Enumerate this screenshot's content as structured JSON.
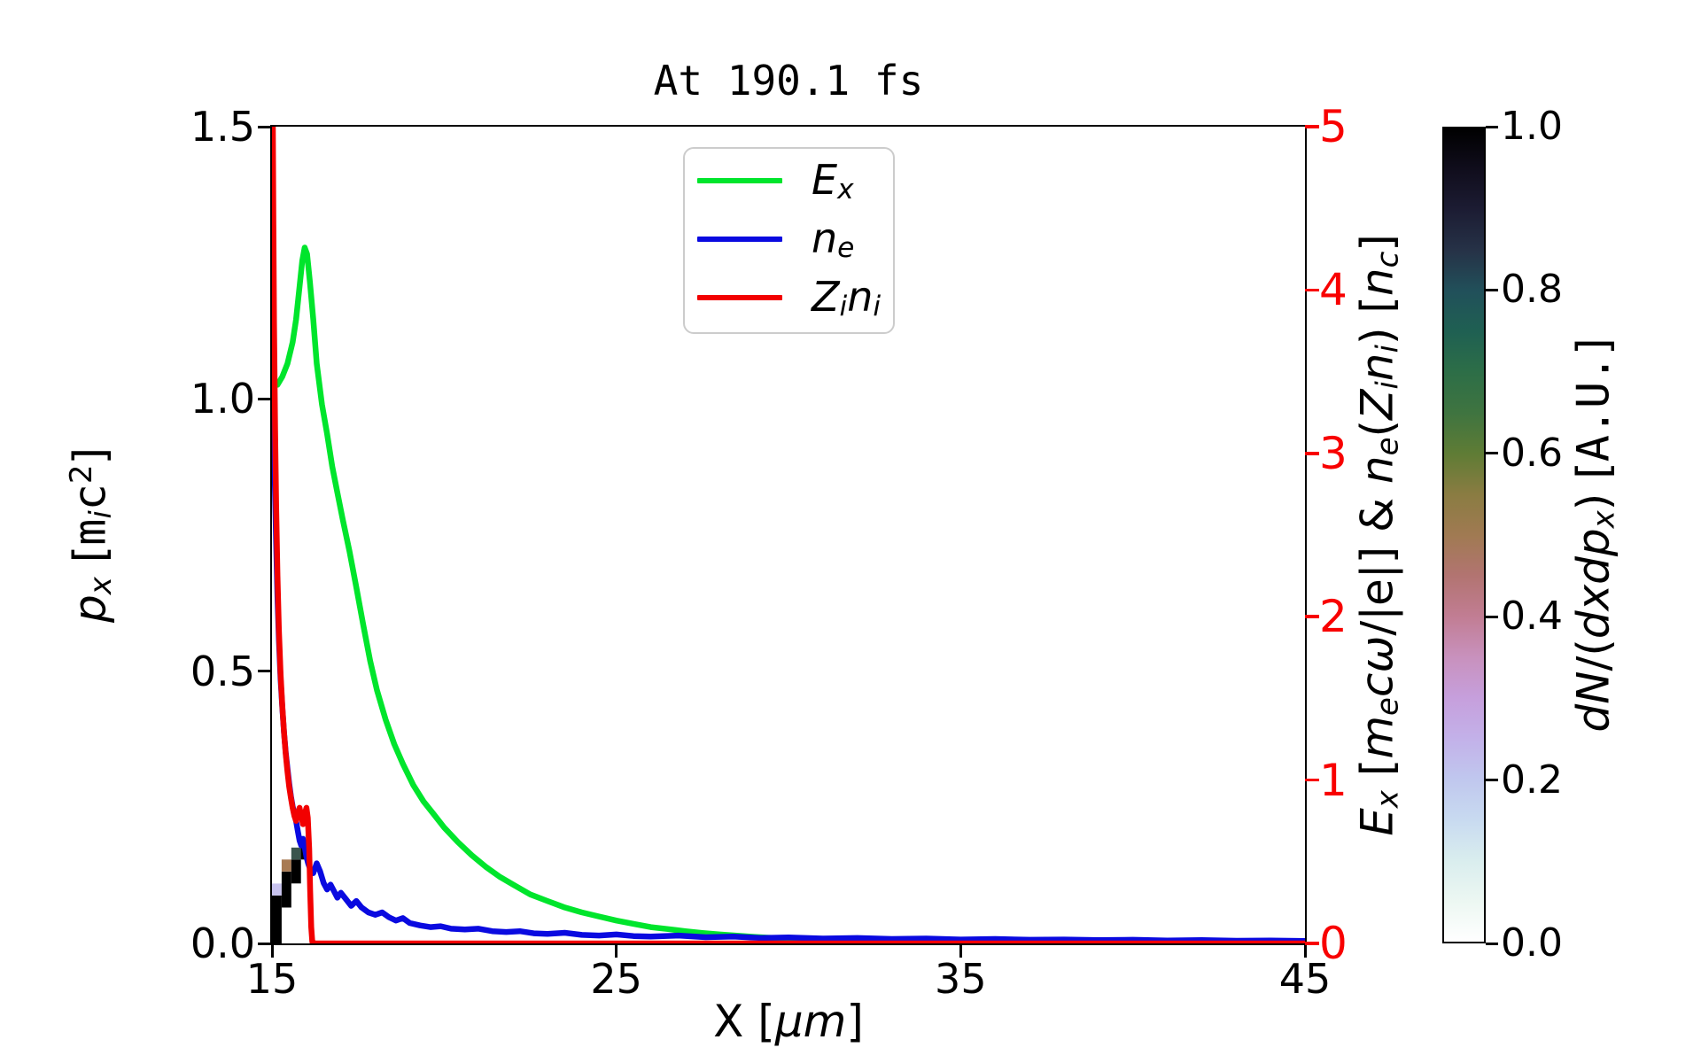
{
  "chart_data": {
    "type": "line+heatmap",
    "title": "At 190.1 fs",
    "xlabel_plain": "X [μm]",
    "ylabel_left_plain": "p_x [m_i c^2]",
    "ylabel_right_plain": "E_x [m_e cω/|e|] & n_e(Z_i n_i) [n_c]",
    "grid": false,
    "legend_position": "upper center",
    "x": {
      "range": [
        15,
        45
      ],
      "label_segments": [
        {
          "t": "X "
        },
        {
          "t": "["
        },
        {
          "t": "μm",
          "i": 1
        },
        {
          "t": "]"
        }
      ],
      "ticks": [
        {
          "v": 15,
          "t": "15"
        },
        {
          "v": 25,
          "t": "25"
        },
        {
          "v": 35,
          "t": "35"
        },
        {
          "v": 45,
          "t": "45"
        }
      ]
    },
    "y_left": {
      "range": [
        0,
        1.5
      ],
      "label_segments": [
        {
          "t": "p",
          "i": 1
        },
        {
          "t": "x",
          "i": 1,
          "sb": 1
        },
        {
          "t": " ["
        },
        {
          "t": "m",
          "mn": 1
        },
        {
          "t": "i",
          "i": 1,
          "sb": 1
        },
        {
          "t": "c",
          "mn": 1
        },
        {
          "t": "2",
          "sp": 1
        },
        {
          "t": "]"
        }
      ],
      "ticks": [
        {
          "v": 0,
          "t": "0.0"
        },
        {
          "v": 0.5,
          "t": "0.5"
        },
        {
          "v": 1,
          "t": "1.0"
        },
        {
          "v": 1.5,
          "t": "1.5"
        }
      ]
    },
    "y_right": {
      "range": [
        0,
        5
      ],
      "color": "#f80000",
      "label_segments": [
        {
          "t": "E",
          "i": 1
        },
        {
          "t": "x",
          "i": 1,
          "sb": 1
        },
        {
          "t": " ["
        },
        {
          "t": "m",
          "i": 1
        },
        {
          "t": "e",
          "i": 1,
          "sb": 1
        },
        {
          "t": "c",
          "i": 1
        },
        {
          "t": "ω",
          "i": 1
        },
        {
          "t": "/|e|] & "
        },
        {
          "t": "n",
          "i": 1
        },
        {
          "t": "e",
          "i": 1,
          "sb": 1
        },
        {
          "t": "("
        },
        {
          "t": "Z",
          "i": 1
        },
        {
          "t": "i",
          "i": 1,
          "sb": 1
        },
        {
          "t": "n",
          "i": 1
        },
        {
          "t": "i",
          "i": 1,
          "sb": 1
        },
        {
          "t": ") ["
        },
        {
          "t": "n",
          "i": 1
        },
        {
          "t": "c",
          "i": 1,
          "sb": 1
        },
        {
          "t": "]"
        }
      ],
      "ticks": [
        {
          "v": 0,
          "t": "0"
        },
        {
          "v": 1,
          "t": "1"
        },
        {
          "v": 2,
          "t": "2"
        },
        {
          "v": 3,
          "t": "3"
        },
        {
          "v": 4,
          "t": "4"
        },
        {
          "v": 5,
          "t": "5"
        }
      ]
    },
    "legend": {
      "items": [
        {
          "name": "E_x",
          "color": "#00e52c",
          "label_segments": [
            {
              "t": "E",
              "i": 1
            },
            {
              "t": "x",
              "i": 1,
              "sb": 1
            }
          ]
        },
        {
          "name": "n_e",
          "color": "#0a0ae0",
          "label_segments": [
            {
              "t": "n",
              "i": 1
            },
            {
              "t": "e",
              "i": 1,
              "sb": 1
            }
          ]
        },
        {
          "name": "Z_i n_i",
          "color": "#f20000",
          "label_segments": [
            {
              "t": "Z",
              "i": 1
            },
            {
              "t": "i",
              "i": 1,
              "sb": 1
            },
            {
              "t": "n",
              "i": 1
            },
            {
              "t": "i",
              "i": 1,
              "sb": 1
            }
          ]
        }
      ]
    },
    "series": [
      {
        "name": "E_x",
        "axis": "right",
        "color": "#00e52c",
        "width": 6.5,
        "points": [
          [
            15,
            3.46
          ],
          [
            15.08,
            3.42
          ],
          [
            15.16,
            3.42
          ],
          [
            15.3,
            3.47
          ],
          [
            15.45,
            3.55
          ],
          [
            15.6,
            3.68
          ],
          [
            15.7,
            3.82
          ],
          [
            15.8,
            4.02
          ],
          [
            15.88,
            4.18
          ],
          [
            15.95,
            4.26
          ],
          [
            16.02,
            4.22
          ],
          [
            16.1,
            4.05
          ],
          [
            16.2,
            3.82
          ],
          [
            16.3,
            3.55
          ],
          [
            16.45,
            3.3
          ],
          [
            16.6,
            3.12
          ],
          [
            16.75,
            2.92
          ],
          [
            16.9,
            2.76
          ],
          [
            17.05,
            2.6
          ],
          [
            17.25,
            2.4
          ],
          [
            17.45,
            2.18
          ],
          [
            17.65,
            1.95
          ],
          [
            17.85,
            1.73
          ],
          [
            18.05,
            1.55
          ],
          [
            18.3,
            1.37
          ],
          [
            18.55,
            1.22
          ],
          [
            18.8,
            1.1
          ],
          [
            19.1,
            0.97
          ],
          [
            19.4,
            0.87
          ],
          [
            19.7,
            0.79
          ],
          [
            20,
            0.71
          ],
          [
            20.4,
            0.62
          ],
          [
            20.8,
            0.54
          ],
          [
            21.2,
            0.47
          ],
          [
            21.6,
            0.41
          ],
          [
            22,
            0.36
          ],
          [
            22.5,
            0.3
          ],
          [
            23,
            0.26
          ],
          [
            23.5,
            0.22
          ],
          [
            24,
            0.19
          ],
          [
            24.5,
            0.165
          ],
          [
            25,
            0.14
          ],
          [
            25.5,
            0.12
          ],
          [
            26,
            0.1
          ],
          [
            26.5,
            0.088
          ],
          [
            27,
            0.075
          ],
          [
            27.5,
            0.064
          ],
          [
            28,
            0.055
          ],
          [
            28.5,
            0.047
          ],
          [
            29,
            0.04
          ],
          [
            29.5,
            0.034
          ],
          [
            30,
            0.03
          ],
          [
            31,
            0.022
          ],
          [
            32,
            0.016
          ],
          [
            33,
            0.012
          ],
          [
            34,
            0.009
          ],
          [
            35,
            0.006
          ],
          [
            36,
            0.005
          ],
          [
            37,
            0.003
          ],
          [
            38,
            0.003
          ],
          [
            39,
            0.002
          ],
          [
            40,
            0.002
          ],
          [
            42,
            0.001
          ],
          [
            45,
            0.001
          ]
        ]
      },
      {
        "name": "n_e",
        "axis": "right",
        "color": "#0a0ae0",
        "width": 6.5,
        "points": [
          [
            15,
            4.95
          ],
          [
            15.02,
            4.2
          ],
          [
            15.05,
            3.3
          ],
          [
            15.08,
            2.85
          ],
          [
            15.12,
            2.45
          ],
          [
            15.16,
            2.12
          ],
          [
            15.2,
            1.86
          ],
          [
            15.25,
            1.62
          ],
          [
            15.3,
            1.44
          ],
          [
            15.35,
            1.29
          ],
          [
            15.4,
            1.17
          ],
          [
            15.45,
            1.07
          ],
          [
            15.5,
            0.98
          ],
          [
            15.55,
            0.9
          ],
          [
            15.6,
            0.84
          ],
          [
            15.65,
            0.79
          ],
          [
            15.7,
            0.75
          ],
          [
            15.75,
            0.69
          ],
          [
            15.8,
            0.63
          ],
          [
            15.85,
            0.6
          ],
          [
            15.9,
            0.64
          ],
          [
            15.95,
            0.59
          ],
          [
            16,
            0.53
          ],
          [
            16.05,
            0.49
          ],
          [
            16.1,
            0.46
          ],
          [
            16.2,
            0.43
          ],
          [
            16.3,
            0.49
          ],
          [
            16.4,
            0.44
          ],
          [
            16.5,
            0.37
          ],
          [
            16.6,
            0.33
          ],
          [
            16.7,
            0.36
          ],
          [
            16.8,
            0.32
          ],
          [
            16.9,
            0.28
          ],
          [
            17,
            0.31
          ],
          [
            17.15,
            0.27
          ],
          [
            17.3,
            0.23
          ],
          [
            17.45,
            0.26
          ],
          [
            17.6,
            0.22
          ],
          [
            17.8,
            0.19
          ],
          [
            18,
            0.175
          ],
          [
            18.2,
            0.19
          ],
          [
            18.4,
            0.16
          ],
          [
            18.6,
            0.14
          ],
          [
            18.8,
            0.155
          ],
          [
            19,
            0.125
          ],
          [
            19.3,
            0.11
          ],
          [
            19.6,
            0.1
          ],
          [
            19.9,
            0.105
          ],
          [
            20.2,
            0.09
          ],
          [
            20.6,
            0.085
          ],
          [
            21,
            0.09
          ],
          [
            21.4,
            0.075
          ],
          [
            21.8,
            0.07
          ],
          [
            22.2,
            0.075
          ],
          [
            22.6,
            0.062
          ],
          [
            23,
            0.058
          ],
          [
            23.5,
            0.065
          ],
          [
            24,
            0.052
          ],
          [
            24.5,
            0.048
          ],
          [
            25,
            0.055
          ],
          [
            25.5,
            0.045
          ],
          [
            26,
            0.042
          ],
          [
            26.8,
            0.048
          ],
          [
            27.6,
            0.038
          ],
          [
            28.4,
            0.042
          ],
          [
            29.2,
            0.033
          ],
          [
            30,
            0.037
          ],
          [
            31,
            0.03
          ],
          [
            32,
            0.033
          ],
          [
            33,
            0.027
          ],
          [
            34,
            0.03
          ],
          [
            35,
            0.024
          ],
          [
            36,
            0.027
          ],
          [
            37,
            0.022
          ],
          [
            38,
            0.024
          ],
          [
            39,
            0.02
          ],
          [
            40,
            0.022
          ],
          [
            41,
            0.018
          ],
          [
            42,
            0.02
          ],
          [
            43,
            0.016
          ],
          [
            44,
            0.018
          ],
          [
            45,
            0.015
          ]
        ]
      },
      {
        "name": "Z_i n_i",
        "axis": "right",
        "color": "#f20000",
        "width": 6.5,
        "points": [
          [
            15.02,
            5.2
          ],
          [
            15.04,
            4.4
          ],
          [
            15.06,
            3.8
          ],
          [
            15.09,
            3.15
          ],
          [
            15.12,
            2.68
          ],
          [
            15.16,
            2.25
          ],
          [
            15.2,
            1.92
          ],
          [
            15.25,
            1.65
          ],
          [
            15.3,
            1.45
          ],
          [
            15.35,
            1.29
          ],
          [
            15.4,
            1.16
          ],
          [
            15.45,
            1.05
          ],
          [
            15.5,
            0.96
          ],
          [
            15.55,
            0.89
          ],
          [
            15.6,
            0.83
          ],
          [
            15.65,
            0.78
          ],
          [
            15.7,
            0.75
          ],
          [
            15.75,
            0.79
          ],
          [
            15.8,
            0.83
          ],
          [
            15.85,
            0.78
          ],
          [
            15.9,
            0.73
          ],
          [
            15.95,
            0.79
          ],
          [
            16,
            0.83
          ],
          [
            16.04,
            0.77
          ],
          [
            16.08,
            0.58
          ],
          [
            16.11,
            0.32
          ],
          [
            16.14,
            0.1
          ],
          [
            16.17,
            0.01
          ],
          [
            16.25,
            0
          ],
          [
            45,
            0
          ]
        ]
      }
    ],
    "histogram": {
      "name": "dN/(dxdp_x)",
      "units": "A.U.",
      "axis": "left",
      "colormap": "cubehelix_r",
      "cells": [
        {
          "x": 15.0,
          "y": 0.0,
          "w": 0.28,
          "h": 0.088,
          "c": "#000000"
        },
        {
          "x": 15.0,
          "y": 0.088,
          "w": 0.28,
          "h": 0.022,
          "c": "#c8c3ee"
        },
        {
          "x": 15.28,
          "y": 0.066,
          "w": 0.28,
          "h": 0.066,
          "c": "#000000"
        },
        {
          "x": 15.28,
          "y": 0.132,
          "w": 0.28,
          "h": 0.022,
          "c": "#a87a52"
        },
        {
          "x": 15.56,
          "y": 0.11,
          "w": 0.28,
          "h": 0.044,
          "c": "#000000"
        },
        {
          "x": 15.56,
          "y": 0.154,
          "w": 0.28,
          "h": 0.022,
          "c": "#3a544d"
        },
        {
          "x": 15.84,
          "y": 0.154,
          "w": 0.28,
          "h": 0.022,
          "c": "#000000"
        },
        {
          "x": 15.84,
          "y": 0.176,
          "w": 0.28,
          "h": 0.022,
          "c": "#c3e1eb"
        }
      ]
    },
    "colorbar": {
      "range": [
        0,
        1
      ],
      "label_segments": [
        {
          "t": "d",
          "i": 1
        },
        {
          "t": "N",
          "i": 1
        },
        {
          "t": "/("
        },
        {
          "t": "d",
          "i": 1
        },
        {
          "t": "x",
          "i": 1
        },
        {
          "t": "d",
          "i": 1
        },
        {
          "t": "p",
          "i": 1
        },
        {
          "t": "x",
          "i": 1,
          "sb": 1
        },
        {
          "t": ") ["
        },
        {
          "t": "A.U.",
          "mn": 1
        },
        {
          "t": "]"
        }
      ],
      "ticks": [
        {
          "v": 0,
          "t": "0.0"
        },
        {
          "v": 0.2,
          "t": "0.2"
        },
        {
          "v": 0.4,
          "t": "0.4"
        },
        {
          "v": 0.6,
          "t": "0.6"
        },
        {
          "v": 0.8,
          "t": "0.8"
        },
        {
          "v": 1,
          "t": "1.0"
        }
      ],
      "gradient": [
        {
          "p": 0.0,
          "c": "#ffffff"
        },
        {
          "p": 0.05,
          "c": "#ecf7f2"
        },
        {
          "p": 0.1,
          "c": "#d9edee"
        },
        {
          "p": 0.15,
          "c": "#c8daf0"
        },
        {
          "p": 0.2,
          "c": "#c0c7ee"
        },
        {
          "p": 0.25,
          "c": "#c3b1e9"
        },
        {
          "p": 0.3,
          "c": "#c69fdc"
        },
        {
          "p": 0.35,
          "c": "#c891bd"
        },
        {
          "p": 0.4,
          "c": "#c17d93"
        },
        {
          "p": 0.45,
          "c": "#b27471"
        },
        {
          "p": 0.5,
          "c": "#a07a52"
        },
        {
          "p": 0.55,
          "c": "#8a7c42"
        },
        {
          "p": 0.6,
          "c": "#5f7c35"
        },
        {
          "p": 0.65,
          "c": "#3f7440"
        },
        {
          "p": 0.7,
          "c": "#2d6e47"
        },
        {
          "p": 0.75,
          "c": "#1f6052"
        },
        {
          "p": 0.8,
          "c": "#21505a"
        },
        {
          "p": 0.85,
          "c": "#263247"
        },
        {
          "p": 0.9,
          "c": "#1c1c33"
        },
        {
          "p": 0.95,
          "c": "#100d1c"
        },
        {
          "p": 1.0,
          "c": "#000000"
        }
      ]
    }
  }
}
